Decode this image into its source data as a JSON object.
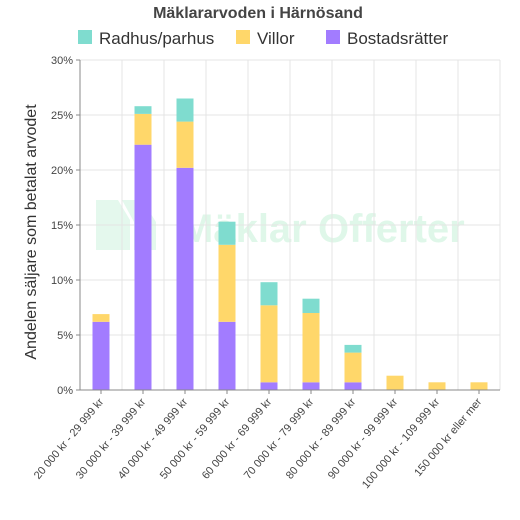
{
  "watermark": {
    "text_a": "Mäklar",
    "text_b": "Offerter"
  },
  "chart_data": {
    "type": "bar",
    "stacked": true,
    "title": "Mäklararvoden i Härnösand",
    "ylabel": "Andelen säljare som betalat arvodet",
    "xlabel": "",
    "ylim": [
      0,
      30
    ],
    "yticks": [
      0,
      5,
      10,
      15,
      20,
      25,
      30
    ],
    "ytick_labels": [
      "0%",
      "5%",
      "10%",
      "15%",
      "20%",
      "25%",
      "30%"
    ],
    "grid": true,
    "legend_position": "top",
    "categories": [
      "20 000 kr - 29 999 kr",
      "30 000 kr - 39 999 kr",
      "40 000 kr - 49 999 kr",
      "50 000 kr - 59 999 kr",
      "60 000 kr - 69 999 kr",
      "70 000 kr - 79 999 kr",
      "80 000 kr - 89 999 kr",
      "90 000 kr - 99 999 kr",
      "100 000 kr - 109 999 kr",
      "150 000 kr eller mer"
    ],
    "series": [
      {
        "name": "Bostadsrätter",
        "color": "#a27cff",
        "values": [
          6.2,
          22.3,
          20.2,
          6.2,
          0.7,
          0.7,
          0.7,
          0,
          0,
          0
        ]
      },
      {
        "name": "Villor",
        "color": "#ffd76a",
        "values": [
          0.7,
          2.8,
          4.2,
          7.0,
          7.0,
          6.3,
          2.7,
          1.3,
          0.7,
          0.7
        ]
      },
      {
        "name": "Radhus/parhus",
        "color": "#7fdccf",
        "values": [
          0,
          0.7,
          2.1,
          2.1,
          2.1,
          1.3,
          0.7,
          0,
          0,
          0
        ]
      }
    ],
    "legend_order": [
      "Radhus/parhus",
      "Villor",
      "Bostadsrätter"
    ]
  }
}
